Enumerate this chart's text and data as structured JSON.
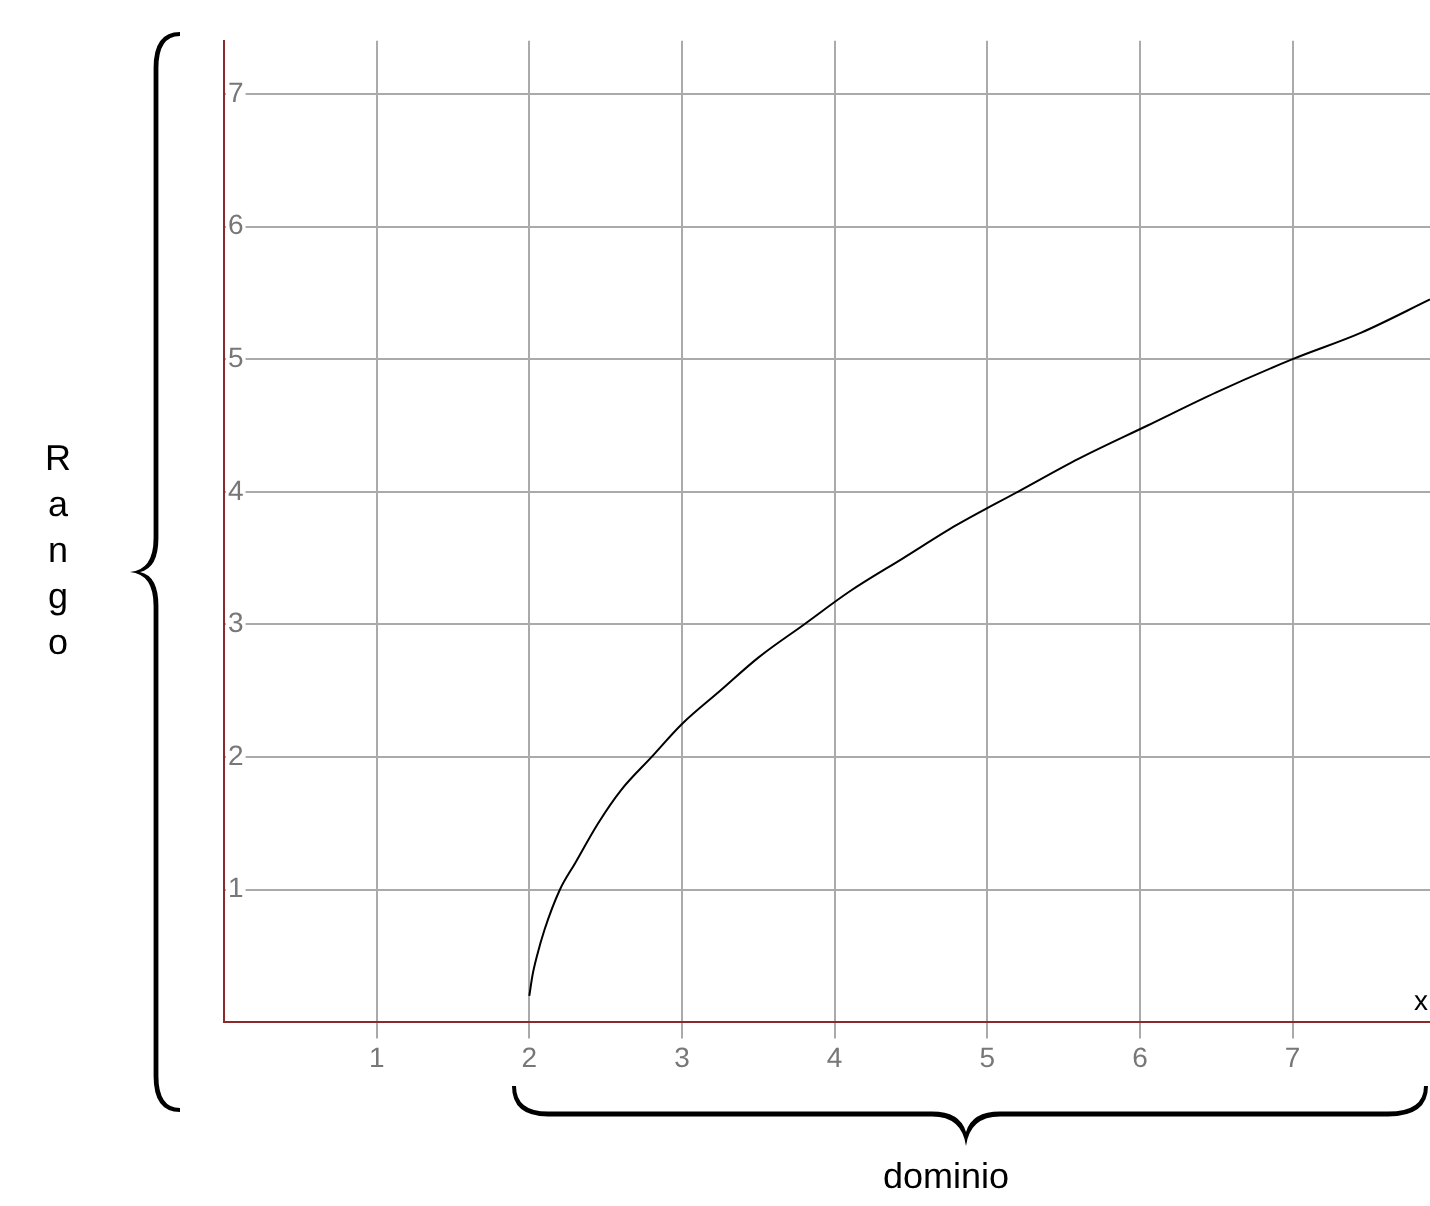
{
  "chart_data": {
    "type": "line",
    "xlabel": "dominio",
    "ylabel": "Rango",
    "annotations": [
      "x"
    ],
    "x": [
      2,
      2.02,
      2.05,
      2.1,
      2.2,
      2.3,
      2.45,
      2.6,
      2.8,
      3.0,
      3.25,
      3.5,
      3.8,
      4.1,
      4.45,
      4.8,
      5.2,
      5.6,
      6.05,
      6.5,
      7,
      7.45,
      7.9
    ],
    "series": [
      {
        "color": "#000000",
        "values": [
          0.2,
          0.35,
          0.5,
          0.7,
          1.0,
          1.2,
          1.5,
          1.75,
          2.0,
          2.25,
          2.5,
          2.75,
          3.0,
          3.25,
          3.5,
          3.75,
          4.0,
          4.25,
          4.5,
          4.75,
          5.0,
          5.2,
          5.45
        ]
      }
    ],
    "xlim": [
      0,
      7.9
    ],
    "ylim": [
      0,
      7.4
    ],
    "xticks": [
      1,
      2,
      3,
      4,
      5,
      6,
      7
    ],
    "yticks": [
      1,
      2,
      3,
      4,
      5,
      6,
      7
    ],
    "grid": true,
    "legend": false,
    "marker": "none",
    "line_style": "solid"
  }
}
